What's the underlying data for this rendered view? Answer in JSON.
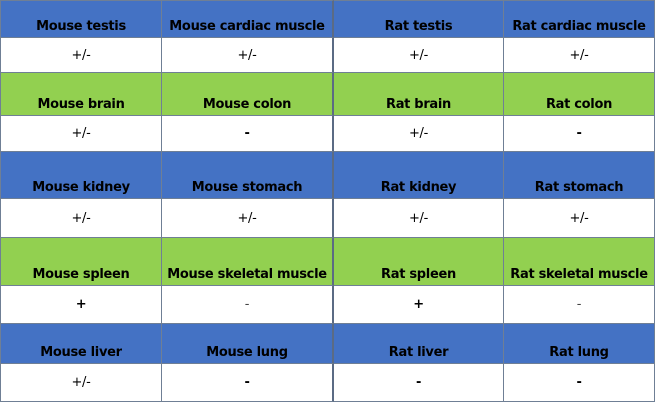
{
  "colors": {
    "blue_header": "#4472c4",
    "green_header": "#92d050",
    "value_row": "#ffffff"
  },
  "rows": [
    {
      "band": "blue",
      "labels": [
        "Mouse testis",
        "Mouse cardiac muscle",
        "Rat testis",
        "Rat cardiac muscle"
      ],
      "values": [
        "+/-",
        "+/-",
        "+/-",
        "+/-"
      ]
    },
    {
      "band": "green",
      "labels": [
        "Mouse brain",
        "Mouse colon",
        "Rat brain",
        "Rat colon"
      ],
      "values": [
        "+/-",
        "-",
        "+/-",
        "-"
      ]
    },
    {
      "band": "blue",
      "labels": [
        "Mouse kidney",
        "Mouse stomach",
        "Rat kidney",
        "Rat stomach"
      ],
      "values": [
        "+/-",
        "+/-",
        "+/-",
        "+/-"
      ]
    },
    {
      "band": "green",
      "labels": [
        "Mouse spleen",
        "Mouse skeletal muscle",
        "Rat spleen",
        "Rat skeletal muscle"
      ],
      "values": [
        "+",
        "-",
        "+",
        "-"
      ]
    },
    {
      "band": "blue",
      "labels": [
        "Mouse liver",
        "Mouse lung",
        "Rat liver",
        "Rat lung"
      ],
      "values": [
        "+/-",
        "-",
        "-",
        "-"
      ]
    }
  ]
}
